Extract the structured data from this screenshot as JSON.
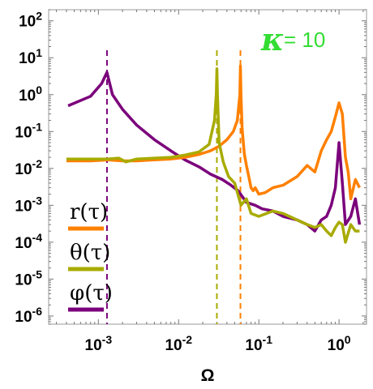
{
  "chart_data": {
    "type": "line",
    "xlabel": "Ω",
    "ylabel": "",
    "x_scale": "log",
    "y_scale": "log",
    "xlim": [
      0.00024,
      2.2
    ],
    "ylim": [
      6e-07,
      200
    ],
    "x_ticks": [
      {
        "value": 0.001,
        "label_base": "10",
        "label_exp": "-3"
      },
      {
        "value": 0.01,
        "label_base": "10",
        "label_exp": "-2"
      },
      {
        "value": 0.1,
        "label_base": "10",
        "label_exp": "-1"
      },
      {
        "value": 1,
        "label_base": "10",
        "label_exp": "0"
      }
    ],
    "y_ticks": [
      {
        "value": 100,
        "label_base": "10",
        "label_exp": "2"
      },
      {
        "value": 10,
        "label_base": "10",
        "label_exp": "1"
      },
      {
        "value": 1,
        "label_base": "10",
        "label_exp": "0"
      },
      {
        "value": 0.1,
        "label_base": "10",
        "label_exp": "-1"
      },
      {
        "value": 0.01,
        "label_base": "10",
        "label_exp": "-2"
      },
      {
        "value": 0.001,
        "label_base": "10",
        "label_exp": "-3"
      },
      {
        "value": 0.0001,
        "label_base": "10",
        "label_exp": "-4"
      },
      {
        "value": 1e-05,
        "label_base": "10",
        "label_exp": "-5"
      },
      {
        "value": 1e-06,
        "label_base": "10",
        "label_exp": "-6"
      }
    ],
    "annotation": {
      "symbol": "κ",
      "text": " = 10",
      "color": "#33dd33"
    },
    "series": [
      {
        "name": "r(τ)",
        "color": "#ff8000",
        "resonance_x": 0.059,
        "x": [
          0.0004,
          0.0008,
          0.0013,
          0.002,
          0.003,
          0.005,
          0.008,
          0.012,
          0.018,
          0.025,
          0.032,
          0.04,
          0.048,
          0.054,
          0.058,
          0.059,
          0.06,
          0.062,
          0.066,
          0.07,
          0.075,
          0.08,
          0.085,
          0.09,
          0.1,
          0.12,
          0.15,
          0.2,
          0.3,
          0.4,
          0.5,
          0.6,
          0.7,
          0.8,
          0.9,
          1.0,
          1.1,
          1.2,
          1.3,
          1.4,
          1.6,
          1.8
        ],
        "values": [
          0.016,
          0.016,
          0.017,
          0.016,
          0.016,
          0.017,
          0.018,
          0.02,
          0.024,
          0.03,
          0.04,
          0.06,
          0.1,
          0.2,
          1.0,
          6.0,
          1.0,
          0.12,
          0.025,
          0.012,
          0.006,
          0.003,
          0.0025,
          0.003,
          0.002,
          0.0022,
          0.003,
          0.0035,
          0.006,
          0.012,
          0.008,
          0.03,
          0.06,
          0.1,
          0.25,
          0.6,
          0.3,
          0.02,
          0.008,
          0.0015,
          0.005,
          0.003
        ]
      },
      {
        "name": "θ(τ)",
        "color": "#a8ab00",
        "resonance_x": 0.03,
        "x": [
          0.0004,
          0.0008,
          0.0013,
          0.0018,
          0.0022,
          0.003,
          0.005,
          0.008,
          0.012,
          0.018,
          0.024,
          0.028,
          0.0295,
          0.03,
          0.0305,
          0.032,
          0.036,
          0.042,
          0.05,
          0.06,
          0.07,
          0.08,
          0.1,
          0.15,
          0.2,
          0.3,
          0.4,
          0.5,
          0.6,
          0.7,
          0.8,
          0.9,
          1.0,
          1.1,
          1.2,
          1.4,
          1.6,
          1.8
        ],
        "values": [
          0.018,
          0.018,
          0.018,
          0.019,
          0.015,
          0.018,
          0.019,
          0.02,
          0.023,
          0.028,
          0.045,
          0.2,
          1.0,
          5.0,
          1.0,
          0.05,
          0.015,
          0.006,
          0.004,
          0.001,
          0.0015,
          0.0006,
          0.0005,
          0.0007,
          0.0006,
          0.0004,
          0.0003,
          0.00025,
          0.0003,
          0.0002,
          0.00015,
          0.00025,
          0.00035,
          0.0003,
          0.0001,
          0.0003,
          0.0002,
          0.0002
        ]
      },
      {
        "name": "φ(τ)",
        "color": "#7b007b",
        "resonance_x": 0.00128,
        "x": [
          0.00042,
          0.0008,
          0.0011,
          0.00128,
          0.0015,
          0.002,
          0.003,
          0.005,
          0.008,
          0.012,
          0.018,
          0.025,
          0.035,
          0.045,
          0.055,
          0.07,
          0.09,
          0.11,
          0.15,
          0.2,
          0.3,
          0.4,
          0.5,
          0.6,
          0.7,
          0.8,
          0.9,
          1.0,
          1.1,
          1.2,
          1.4,
          1.6,
          1.8
        ],
        "values": [
          0.5,
          0.9,
          2.0,
          4.0,
          1.0,
          0.4,
          0.15,
          0.06,
          0.03,
          0.017,
          0.011,
          0.007,
          0.005,
          0.0035,
          0.0025,
          0.0012,
          0.001,
          0.0008,
          0.0007,
          0.0005,
          0.0004,
          0.0003,
          0.0002,
          0.0004,
          0.0005,
          0.001,
          0.003,
          0.05,
          0.004,
          0.0003,
          0.0005,
          0.0015,
          0.0003
        ]
      }
    ],
    "grid": false,
    "legend_position": "left-bottom"
  }
}
